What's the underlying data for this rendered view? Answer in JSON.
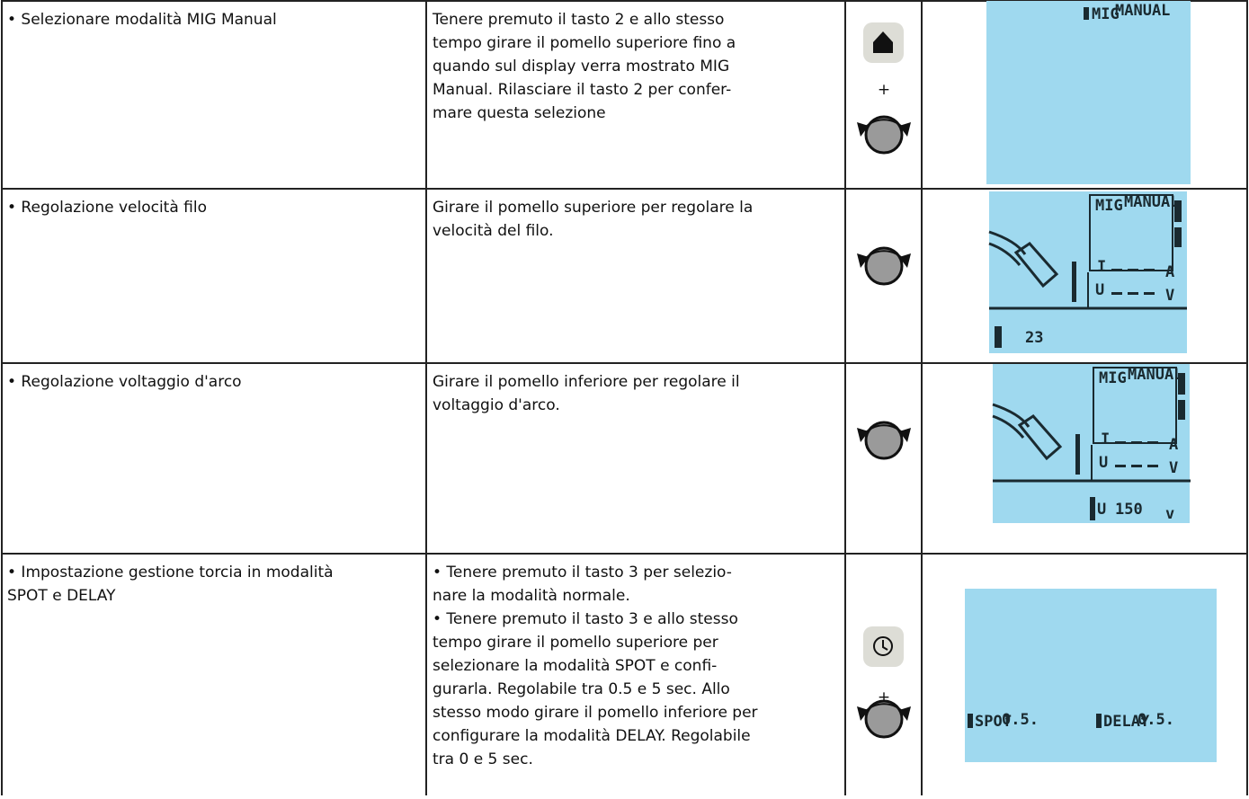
{
  "rows": [
    {
      "task": [
        "• Selezionare modalità MIG Manual"
      ],
      "instructions": [
        "Tenere premuto il tasto 2 e allo stesso",
        "tempo girare il pomello superiore fino a",
        "quando sul display verra mostrato MIG",
        "Manual. Rilasciare il tasto 2 per confer-",
        "mare questa selezione"
      ],
      "control_sign": "+",
      "display": [
        "MIG",
        "MANUAL"
      ]
    },
    {
      "task": [
        "• Regolazione velocità filo"
      ],
      "instructions": [
        "Girare il pomello superiore per regolare la",
        "velocità del filo."
      ],
      "display": [
        "MIG",
        "MANUAL",
        "I",
        "A",
        "U",
        "V",
        "23"
      ]
    },
    {
      "task": [
        "• Regolazione voltaggio d'arco"
      ],
      "instructions": [
        "Girare il pomello inferiore per regolare il",
        "voltaggio d'arco."
      ],
      "display": [
        "MIG",
        "MANUAL",
        "I",
        "A",
        "U",
        "V",
        "U",
        "150",
        "v"
      ]
    },
    {
      "task": [
        "• Impostazione gestione torcia in modalità",
        "SPOT e DELAY"
      ],
      "instructions": [
        "• Tenere premuto il tasto 3 per selezio-",
        "nare la modalità normale.",
        "• Tenere premuto il tasto 3 e allo stesso",
        "tempo girare il pomello superiore per",
        "selezionare la modalità SPOT e confi-",
        "gurarla. Regolabile tra 0.5 e 5 sec. Allo",
        "stesso modo girare il pomello inferiore per",
        "configurare la modalità DELAY. Regolabile",
        "tra 0 e 5 sec."
      ],
      "control_sign": "+",
      "display": [
        "SPOT",
        "0.5.",
        "DELAY",
        "0.5."
      ]
    }
  ]
}
